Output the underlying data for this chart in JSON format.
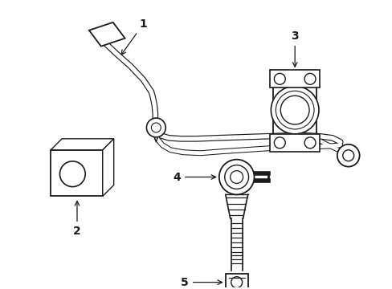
{
  "background_color": "#ffffff",
  "line_color": "#1a1a1a",
  "bar_outer_lw": 5.5,
  "bar_inner_lw": 3.8,
  "figsize": [
    4.89,
    3.6
  ],
  "dpi": 100
}
